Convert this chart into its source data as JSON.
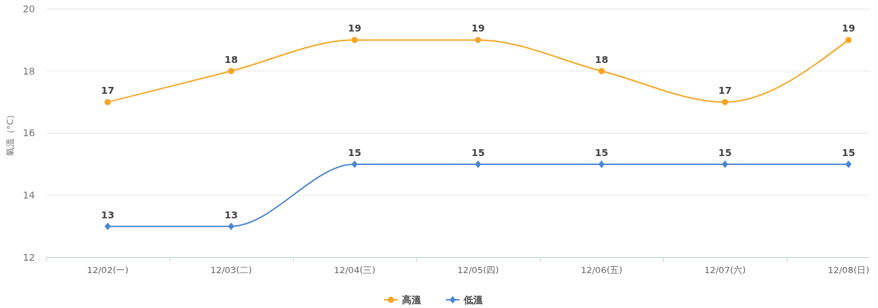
{
  "chart_data": {
    "type": "line",
    "ylabel": "氣溫（°C）",
    "categories": [
      "12/02(一)",
      "12/03(二)",
      "12/04(三)",
      "12/05(四)",
      "12/06(五)",
      "12/07(六)",
      "12/08(日)"
    ],
    "series": [
      {
        "name": "高溫",
        "color": "#f5a623",
        "values": [
          17,
          18,
          19,
          19,
          18,
          17,
          19
        ],
        "marker": "circle"
      },
      {
        "name": "低溫",
        "color": "#4a86d0",
        "values": [
          13,
          13,
          15,
          15,
          15,
          15,
          15
        ],
        "marker": "diamond"
      }
    ],
    "ylim": [
      12,
      20
    ],
    "yticks": [
      12,
      14,
      16,
      18,
      20
    ],
    "grid": "y",
    "legend": "bottom",
    "data_labels": true
  }
}
